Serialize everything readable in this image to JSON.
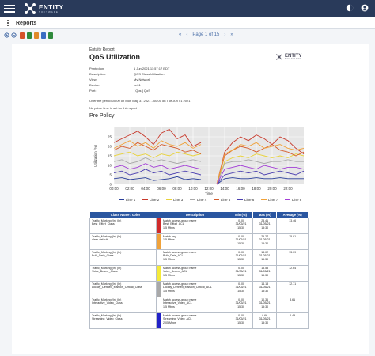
{
  "app": {
    "logo_name": "ENTITY",
    "logo_sub": "SOFTWARE",
    "page_title": "Reports"
  },
  "pager": {
    "first": "«",
    "prev": "‹",
    "text": "Page 1 of 15",
    "next": "›",
    "last": "»"
  },
  "report": {
    "header": "Entuity Report",
    "title": "QoS Utilization",
    "meta": [
      {
        "k": "Printed on:",
        "v": "1 Jun 2021 11:57:17 EDT"
      },
      {
        "k": "Description:",
        "v": "QOS Class Utilization"
      },
      {
        "k": "View:",
        "v": "My Network"
      },
      {
        "k": "Device:",
        "v": "ce01"
      },
      {
        "k": "Port:",
        "v": "[ Qos ] QoS"
      }
    ],
    "period": "Over the period 00:00 on Mon May 31 2021 - 00:00 on Tue Jun 01 2021",
    "no_prime": "No prime time is set for this report",
    "section": "Pre Policy"
  },
  "chart_data": {
    "type": "line",
    "ylabel": "Utilization (%)",
    "xlabel": "Time",
    "ylim": [
      0,
      30
    ],
    "yticks": [
      0,
      5,
      10,
      15,
      20,
      25
    ],
    "xticks": [
      "00:00",
      "02:00",
      "04:00",
      "06:00",
      "08:00",
      "10:00",
      "12:00",
      "14:00",
      "16:00",
      "18:00",
      "20:00",
      "22:00"
    ],
    "x": [
      0,
      1,
      2,
      3,
      4,
      5,
      6,
      7,
      8,
      9,
      10,
      11,
      13,
      14,
      15,
      16,
      17,
      18,
      19,
      20,
      21,
      22,
      23,
      24
    ],
    "series": [
      {
        "name": "Line 1",
        "color": "#2a3f9a",
        "values": [
          3,
          3.5,
          2.5,
          3,
          3.5,
          2,
          2.5,
          3,
          4,
          2.5,
          3,
          2.5,
          0,
          3,
          3.5,
          3,
          3,
          3.5,
          3,
          3,
          3.5,
          3,
          3,
          3
        ]
      },
      {
        "name": "Line 2",
        "color": "#c8392b",
        "values": [
          22,
          24,
          26,
          28,
          25,
          21,
          27,
          29,
          24,
          26,
          20,
          22,
          0,
          17,
          22,
          25,
          23,
          26,
          24,
          21,
          25,
          23,
          19,
          16
        ]
      },
      {
        "name": "Line 3",
        "color": "#e8d23a",
        "values": [
          15,
          16,
          17,
          15,
          16,
          14,
          16,
          15,
          17,
          16,
          15,
          16,
          0,
          12,
          14,
          15,
          14,
          16,
          15,
          14,
          15,
          14,
          16,
          15
        ]
      },
      {
        "name": "Line 4",
        "color": "#a9a9a9",
        "values": [
          12,
          13,
          11,
          12,
          14,
          12,
          13,
          12,
          11,
          12,
          13,
          12,
          0,
          11,
          12,
          12,
          13,
          12,
          11,
          12,
          12,
          13,
          12,
          12
        ]
      },
      {
        "name": "Line 5",
        "color": "#d55a2a",
        "values": [
          18,
          20,
          19,
          22,
          20,
          18,
          21,
          20,
          19,
          17,
          18,
          16,
          0,
          15,
          18,
          20,
          19,
          17,
          19,
          21,
          18,
          17,
          15,
          17
        ]
      },
      {
        "name": "Line 6",
        "color": "#4b3fb0",
        "values": [
          6,
          7,
          5,
          6,
          8,
          6,
          7,
          5,
          6,
          7,
          6,
          5,
          0,
          5,
          6,
          7,
          6,
          7,
          5,
          6,
          7,
          6,
          5,
          7
        ]
      },
      {
        "name": "Line 7",
        "color": "#f0a23a",
        "values": [
          19,
          21,
          23,
          20,
          22,
          19,
          23,
          21,
          20,
          22,
          19,
          21,
          0,
          16,
          18,
          21,
          20,
          22,
          19,
          20,
          21,
          19,
          18,
          19
        ]
      },
      {
        "name": "Line 8",
        "color": "#a33fd6",
        "values": [
          9,
          10,
          8,
          9,
          11,
          9,
          10,
          8,
          9,
          10,
          9,
          8,
          0,
          8,
          9,
          10,
          9,
          8,
          10,
          9,
          8,
          9,
          9,
          8
        ]
      }
    ]
  },
  "table": {
    "headers": [
      "Class Name / color",
      "Description",
      "Min (%)",
      "Max (%)",
      "Average (%)"
    ],
    "rows": [
      {
        "name": "Traffic_Marking (In) (In)\nBest_Effort_Class",
        "color": "#d02a2a",
        "desc": "Match access-group name\nBest_Effort_ACL\n1.5 Mbps",
        "min": "0.00\n31/05/21\n15:30",
        "max": "28.41\n31/05/21\n15:30",
        "avg": "13.46"
      },
      {
        "name": "Traffic_Marking (In) (In)\nclass-default",
        "color": "#f0a23a",
        "desc": "Match any\n1.5 Mbps",
        "min": "0.00\n31/05/21\n15:30",
        "max": "25.27\n31/05/21\n15:30",
        "avg": "15.91"
      },
      {
        "name": "Traffic_Marking (In) (In)\nBulk_Data_Class",
        "color": "#ffffff",
        "desc": "Match access-group name\nBulk_Data_ACL\n1.5 Mbps",
        "min": "0.00\n31/05/21\n15:30",
        "max": "18.02\n31/05/21\n15:30",
        "avg": "13.09"
      },
      {
        "name": "Traffic_Marking (In) (In)\nVoice_Bearer_Class",
        "color": "#f5ea3a",
        "desc": "Match access-group name\nVoice_Bearer_ACL\n1.5 Mbps",
        "min": "0.00\n31/05/21\n15:30",
        "max": "15.55\n31/05/21\n15:30",
        "avg": "12.64"
      },
      {
        "name": "Traffic_Marking (In) (In)\nLocally_Defined_Mission_Critical_Class",
        "color": "#a9a9a9",
        "desc": "Match access-group name\nLocally_Defined_Mission_Critical_ACL\n1.5 Mbps",
        "min": "0.00\n31/05/21\n15:30",
        "max": "14.13\n31/05/21\n15:30",
        "avg": "12.71"
      },
      {
        "name": "Traffic_Marking (In) (In)\nInteractive_Video_Class",
        "color": "#ffffff",
        "desc": "Match access-group name\nInteractive_Video_ACL\n1.5 Mbps",
        "min": "0.00\n31/05/21\n15:30",
        "max": "10.36\n31/05/21\n15:30",
        "avg": "8.61"
      },
      {
        "name": "Traffic_Marking (In) (In)\nStreaming_Video_Class",
        "color": "#2222c8",
        "desc": "Match access-group name\nStreaming_Video_ACL\n2.05 Mbps",
        "min": "0.00\n31/05/21\n15:30",
        "max": "8.66\n31/05/21\n15:30",
        "avg": "6.49"
      }
    ]
  },
  "colors": {
    "topbar": "#293a5a",
    "table_header": "#2a56a0",
    "link": "#4a6fa8"
  }
}
